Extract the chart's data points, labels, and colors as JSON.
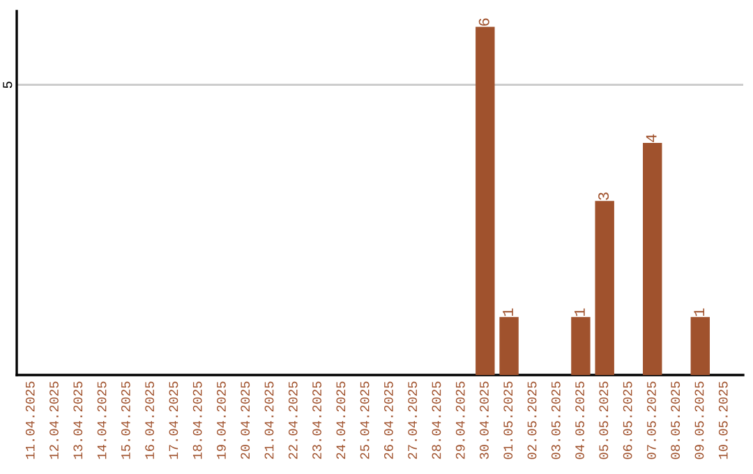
{
  "chart_data": {
    "type": "bar",
    "categories": [
      "11.04.2025",
      "12.04.2025",
      "13.04.2025",
      "14.04.2025",
      "15.04.2025",
      "16.04.2025",
      "17.04.2025",
      "18.04.2025",
      "19.04.2025",
      "20.04.2025",
      "21.04.2025",
      "22.04.2025",
      "23.04.2025",
      "24.04.2025",
      "25.04.2025",
      "26.04.2025",
      "27.04.2025",
      "28.04.2025",
      "29.04.2025",
      "30.04.2025",
      "01.05.2025",
      "02.05.2025",
      "03.05.2025",
      "04.05.2025",
      "05.05.2025",
      "06.05.2025",
      "07.05.2025",
      "08.05.2025",
      "09.05.2025",
      "10.05.2025"
    ],
    "values": [
      null,
      null,
      null,
      null,
      null,
      null,
      null,
      null,
      null,
      null,
      null,
      null,
      null,
      null,
      null,
      null,
      null,
      null,
      null,
      6,
      1,
      null,
      null,
      1,
      3,
      null,
      4,
      null,
      1,
      null
    ],
    "data_labels": true,
    "color": "#a0522d",
    "ylim": [
      0,
      6.27
    ],
    "yticks": [
      5
    ],
    "grid": "y"
  }
}
